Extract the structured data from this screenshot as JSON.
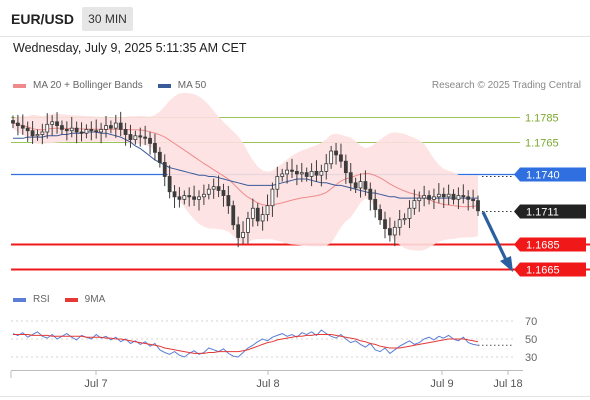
{
  "header": {
    "symbol": "EUR/USD",
    "timeframe": "30 MIN"
  },
  "timestamp": "Wednesday, July 9, 2025 5:11:35 AM CET",
  "legend": [
    {
      "name": "MA 20 + Bollinger Bands",
      "color": "#f08a8a"
    },
    {
      "name": "MA 50",
      "color": "#3a5a9a"
    }
  ],
  "credit": "Research © 2025 Trading Central",
  "rsi_legend": [
    {
      "name": "RSI",
      "color": "#5b7fd6"
    },
    {
      "name": "9MA",
      "color": "#e53935"
    }
  ],
  "colors": {
    "accent_blue": "#2f6fe0",
    "support_red": "#f01818",
    "resistance_green": "#9ac45a",
    "candle": "#3c3c3c",
    "bollinger_fill": "#fde0e0",
    "arrow": "#2c5f9e"
  },
  "chart_data": {
    "type": "candlestick",
    "title": "EUR/USD",
    "timeframe": "30 MIN",
    "x_ticks": [
      "Jul 7",
      "Jul 8",
      "Jul 9",
      "Jul 18"
    ],
    "y_range": [
      1.1655,
      1.1795
    ],
    "levels": [
      {
        "label": "1.1785",
        "value": 1.1785,
        "kind": "resistance",
        "color": "#9ac45a"
      },
      {
        "label": "1.1765",
        "value": 1.1765,
        "kind": "resistance",
        "color": "#9ac45a"
      },
      {
        "label": "1.1740",
        "value": 1.174,
        "kind": "pivot",
        "color": "#2f6fe0"
      },
      {
        "label": "1.1685",
        "value": 1.1685,
        "kind": "support",
        "color": "#f01818"
      },
      {
        "label": "1.1665",
        "value": 1.1665,
        "kind": "support",
        "color": "#f01818"
      }
    ],
    "last_price": {
      "label": "1.1711",
      "value": 1.1711
    },
    "closes": [
      1.178,
      1.1778,
      1.1776,
      1.1774,
      1.177,
      1.1771,
      1.1773,
      1.1779,
      1.1781,
      1.1778,
      1.1775,
      1.1774,
      1.1776,
      1.1773,
      1.1772,
      1.1775,
      1.1774,
      1.1773,
      1.1775,
      1.1778,
      1.1776,
      1.178,
      1.1775,
      1.1771,
      1.1767,
      1.177,
      1.1769,
      1.1768,
      1.1764,
      1.1757,
      1.1749,
      1.1738,
      1.1726,
      1.1722,
      1.172,
      1.1723,
      1.1722,
      1.172,
      1.1722,
      1.1724,
      1.1728,
      1.173,
      1.1727,
      1.1723,
      1.1715,
      1.17,
      1.169,
      1.1694,
      1.1705,
      1.1713,
      1.1703,
      1.1708,
      1.1715,
      1.1728,
      1.1738,
      1.174,
      1.1743,
      1.1742,
      1.174,
      1.1741,
      1.1738,
      1.1742,
      1.1739,
      1.1742,
      1.1748,
      1.1758,
      1.1755,
      1.175,
      1.1741,
      1.1733,
      1.1729,
      1.1734,
      1.1728,
      1.172,
      1.1712,
      1.1704,
      1.1697,
      1.1692,
      1.1698,
      1.1704,
      1.1705,
      1.1713,
      1.1719,
      1.1721,
      1.1723,
      1.172,
      1.1722,
      1.1724,
      1.1722,
      1.1724,
      1.172,
      1.1723,
      1.1722,
      1.172,
      1.1719,
      1.1711
    ],
    "ma50": [
      1.1768,
      1.1768,
      1.1768,
      1.1769,
      1.1769,
      1.1769,
      1.1769,
      1.177,
      1.177,
      1.177,
      1.1771,
      1.1771,
      1.1772,
      1.1772,
      1.1772,
      1.1773,
      1.1773,
      1.1773,
      1.1772,
      1.1772,
      1.1771,
      1.177,
      1.1769,
      1.1767,
      1.1765,
      1.1762,
      1.176,
      1.1757,
      1.1754,
      1.1751,
      1.1749,
      1.1747,
      1.1745,
      1.1744,
      1.1743,
      1.1742,
      1.1741,
      1.174,
      1.1739,
      1.1739,
      1.1738,
      1.1738,
      1.1737,
      1.1736,
      1.1735,
      1.1734,
      1.1733,
      1.1732,
      1.1731,
      1.1731,
      1.1731,
      1.1731,
      1.1731,
      1.1731,
      1.1732,
      1.1733,
      1.1734,
      1.1735,
      1.1736,
      1.1736,
      1.1736,
      1.1735,
      1.1734,
      1.1733,
      1.1733,
      1.1732,
      1.1731,
      1.1731,
      1.173,
      1.1729,
      1.1728,
      1.1727,
      1.1726,
      1.1725,
      1.1725,
      1.1724,
      1.1723,
      1.1722,
      1.1722,
      1.1721,
      1.1721,
      1.1721,
      1.1721,
      1.1721,
      1.1721,
      1.1721,
      1.1721,
      1.1721,
      1.1721,
      1.1721,
      1.1721,
      1.1721,
      1.1721,
      1.1721,
      1.1721,
      1.1721
    ],
    "rsi_axis_ticks": [
      "70",
      "50",
      "30"
    ],
    "rsi_range": [
      20,
      80
    ],
    "rsi": [
      56,
      54,
      57,
      52,
      55,
      58,
      53,
      51,
      55,
      50,
      53,
      56,
      52,
      49,
      54,
      52,
      50,
      55,
      51,
      53,
      49,
      52,
      47,
      50,
      45,
      48,
      44,
      47,
      42,
      45,
      38,
      35,
      33,
      36,
      32,
      30,
      34,
      37,
      33,
      35,
      40,
      38,
      36,
      39,
      34,
      31,
      30,
      35,
      40,
      43,
      47,
      50,
      48,
      52,
      54,
      56,
      53,
      55,
      52,
      57,
      55,
      58,
      54,
      60,
      56,
      53,
      51,
      55,
      50,
      46,
      48,
      44,
      41,
      45,
      38,
      36,
      40,
      34,
      38,
      42,
      45,
      48,
      44,
      46,
      50,
      52,
      49,
      53,
      51,
      54,
      50,
      48,
      52,
      46,
      44,
      43
    ],
    "rsi_ma": [
      55,
      55,
      55,
      55,
      54,
      54,
      54,
      54,
      53,
      53,
      53,
      53,
      53,
      53,
      53,
      52,
      52,
      52,
      52,
      51,
      51,
      50,
      50,
      49,
      48,
      47,
      46,
      45,
      44,
      43,
      42,
      40,
      39,
      38,
      37,
      36,
      35,
      34,
      34,
      34,
      35,
      35,
      36,
      36,
      36,
      36,
      36,
      37,
      38,
      40,
      42,
      44,
      46,
      47,
      49,
      50,
      51,
      52,
      53,
      53,
      54,
      54,
      55,
      55,
      55,
      55,
      54,
      53,
      52,
      51,
      50,
      48,
      47,
      45,
      44,
      42,
      41,
      40,
      40,
      40,
      41,
      42,
      43,
      44,
      45,
      46,
      47,
      48,
      49,
      50,
      50,
      50,
      50,
      49,
      48,
      47
    ]
  }
}
